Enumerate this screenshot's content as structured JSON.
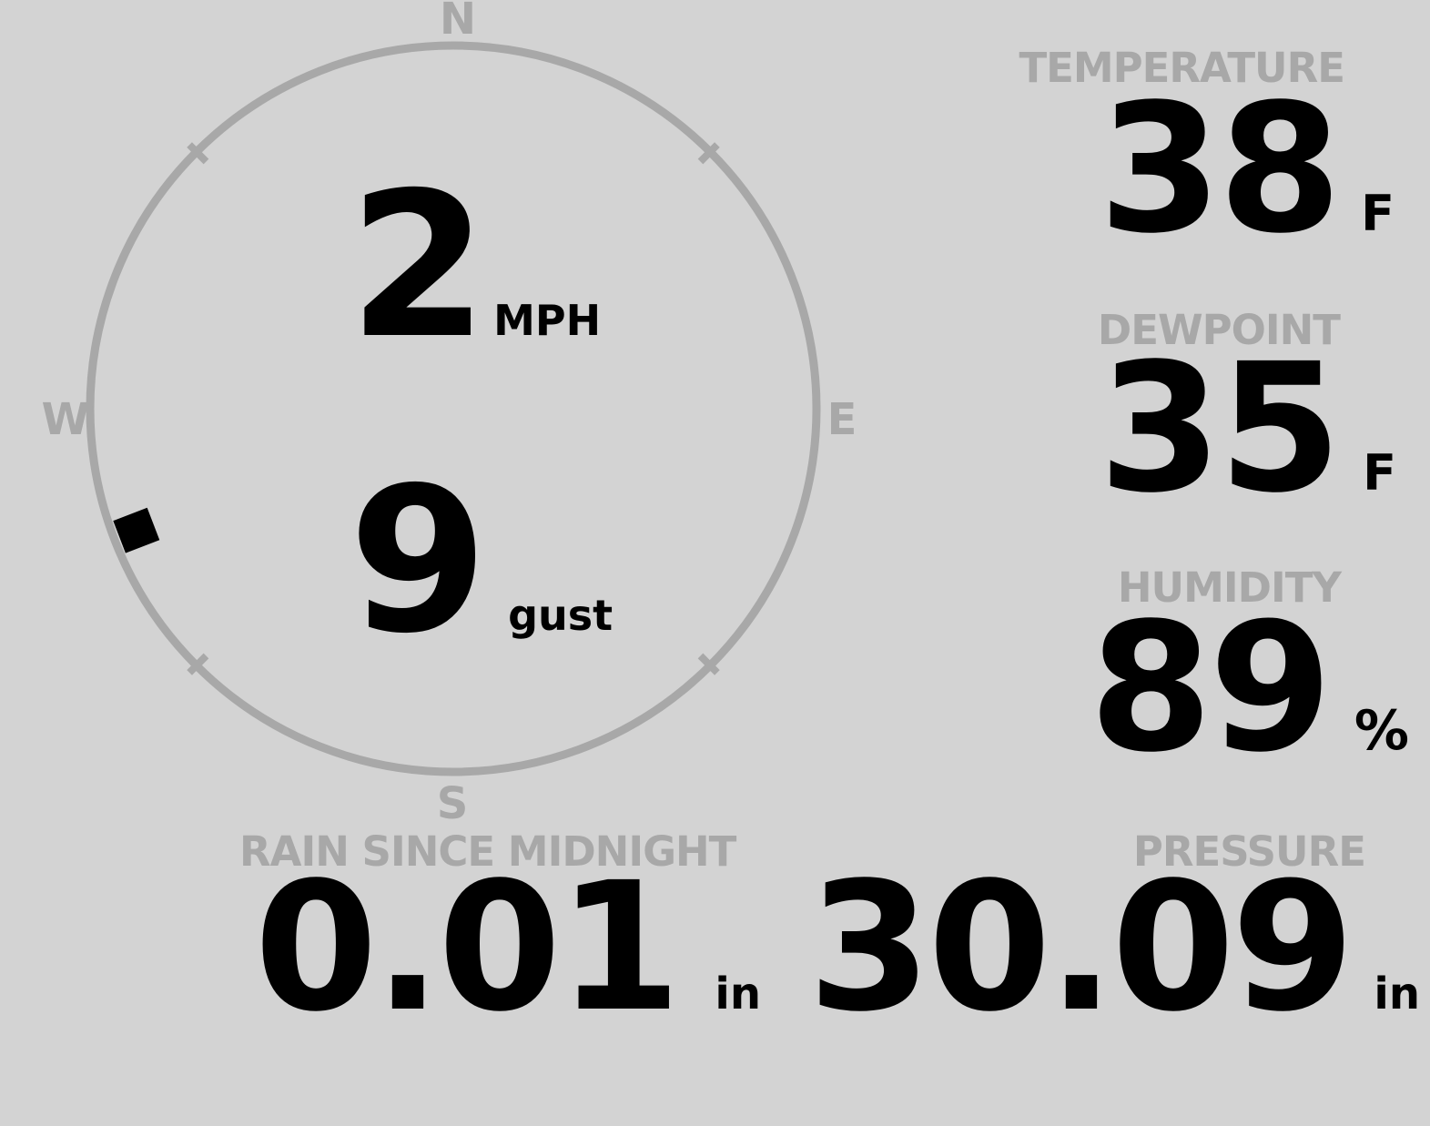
{
  "colors": {
    "background": "#d3d3d3",
    "muted_gray": "#a8a8a8",
    "ink": "#000000"
  },
  "wind_gauge": {
    "compass_labels": {
      "north": "N",
      "east": "E",
      "south": "S",
      "west": "W"
    },
    "speed": {
      "value": "2",
      "unit": "MPH"
    },
    "gust": {
      "value": "9",
      "unit": "gust"
    },
    "direction_bearing_deg": 249
  },
  "readings": {
    "temperature": {
      "label": "TEMPERATURE",
      "value": "38",
      "unit": "F"
    },
    "dewpoint": {
      "label": "DEWPOINT",
      "value": "35",
      "unit": "F"
    },
    "humidity": {
      "label": "HUMIDITY",
      "value": "89",
      "unit": "%"
    },
    "rain_since_midnight": {
      "label": "RAIN SINCE MIDNIGHT",
      "value": "0.01",
      "unit": "in"
    },
    "pressure": {
      "label": "PRESSURE",
      "value": "30.09",
      "unit": "in"
    }
  }
}
